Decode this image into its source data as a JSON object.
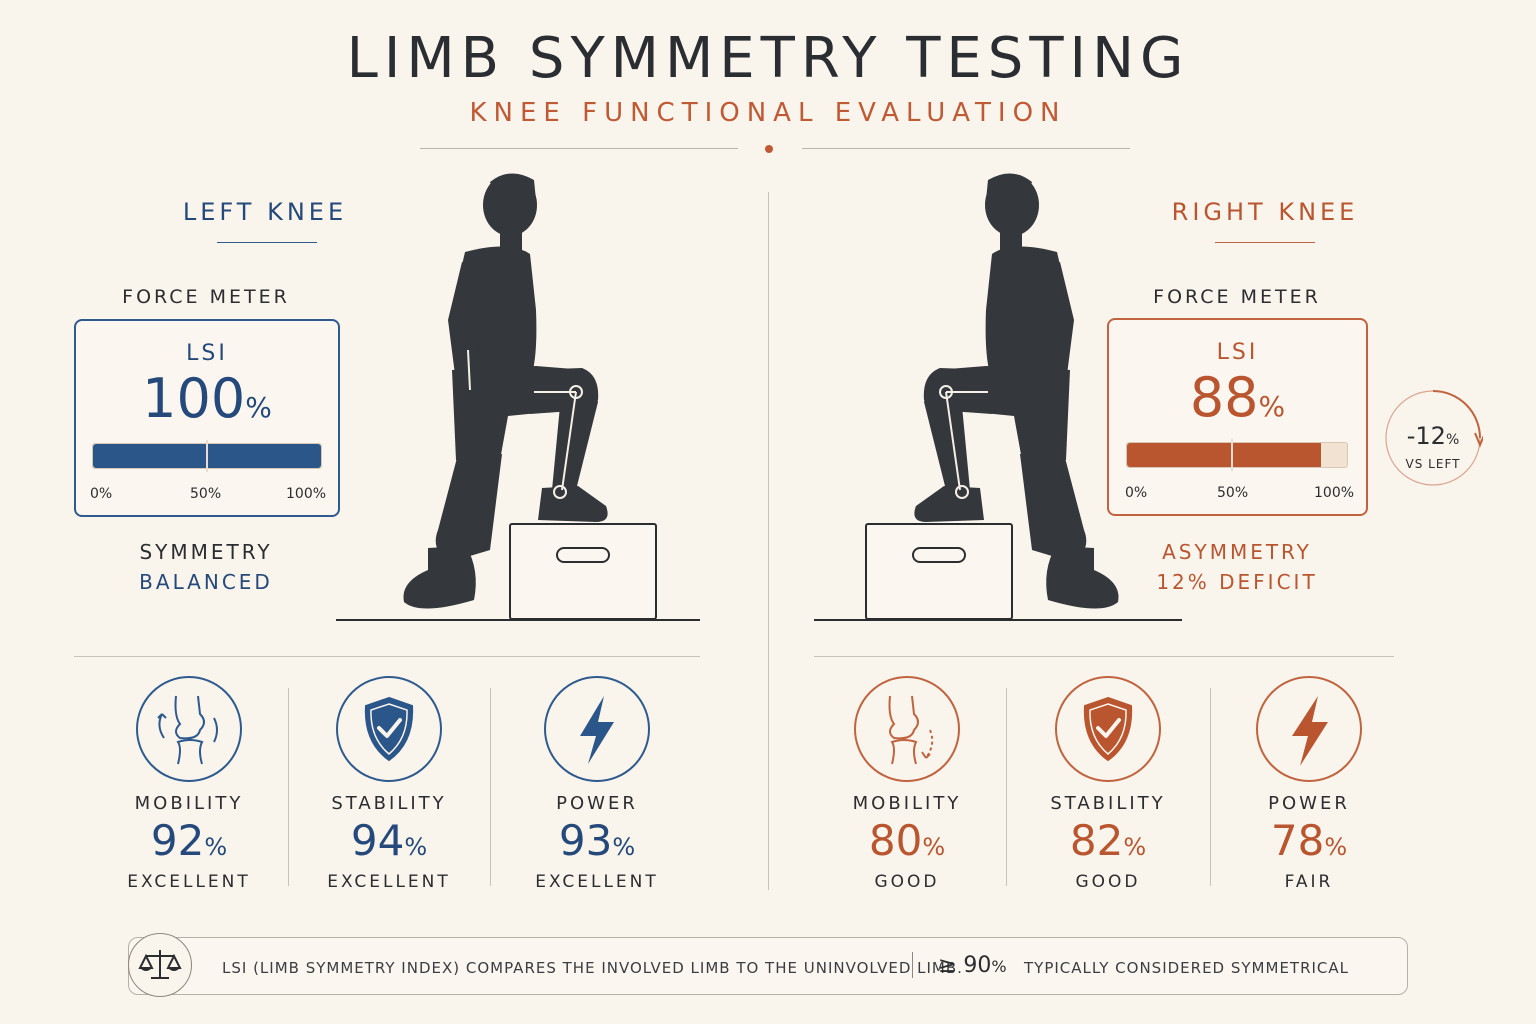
{
  "header": {
    "title": "LIMB SYMMETRY TESTING",
    "subtitle": "KNEE FUNCTIONAL EVALUATION"
  },
  "colors": {
    "left_accent": "#24497a",
    "right_accent": "#b9562f",
    "background": "#f9f4ec",
    "figure": "#34373b"
  },
  "left": {
    "heading": "LEFT KNEE",
    "force_meter_label": "FORCE METER",
    "lsi_label": "LSI",
    "lsi_value": "100",
    "lsi_unit": "%",
    "lsi_fraction": 1.0,
    "ticks": [
      "0%",
      "50%",
      "100%"
    ],
    "status_label": "SYMMETRY",
    "status_value": "BALANCED",
    "metrics": [
      {
        "name": "MOBILITY",
        "value": "92",
        "unit": "%",
        "rating": "EXCELLENT",
        "icon": "knee-joint-icon"
      },
      {
        "name": "STABILITY",
        "value": "94",
        "unit": "%",
        "rating": "EXCELLENT",
        "icon": "shield-check-icon"
      },
      {
        "name": "POWER",
        "value": "93",
        "unit": "%",
        "rating": "EXCELLENT",
        "icon": "lightning-icon"
      }
    ]
  },
  "right": {
    "heading": "RIGHT KNEE",
    "force_meter_label": "FORCE METER",
    "lsi_label": "LSI",
    "lsi_value": "88",
    "lsi_unit": "%",
    "lsi_fraction": 0.88,
    "ticks": [
      "0%",
      "50%",
      "100%"
    ],
    "status_label": "ASYMMETRY",
    "status_value": "12% DEFICIT",
    "delta_value": "-12",
    "delta_unit": "%",
    "delta_caption": "VS LEFT",
    "metrics": [
      {
        "name": "MOBILITY",
        "value": "80",
        "unit": "%",
        "rating": "GOOD",
        "icon": "knee-joint-icon"
      },
      {
        "name": "STABILITY",
        "value": "82",
        "unit": "%",
        "rating": "GOOD",
        "icon": "shield-check-icon"
      },
      {
        "name": "POWER",
        "value": "78",
        "unit": "%",
        "rating": "FAIR",
        "icon": "lightning-icon"
      }
    ]
  },
  "footer": {
    "icon": "balance-scale-icon",
    "definition": "LSI (LIMB SYMMETRY INDEX) COMPARES THE INVOLVED LIMB TO THE UNINVOLVED LIMB.",
    "threshold_value": "≥ 90",
    "threshold_unit": "%",
    "threshold_caption": "TYPICALLY CONSIDERED SYMMETRICAL"
  }
}
